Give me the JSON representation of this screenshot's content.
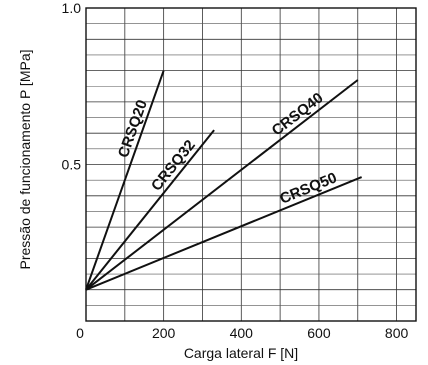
{
  "chart_data": {
    "type": "line",
    "xlabel": "Carga lateral  F [N]",
    "ylabel": "Pressão de funcionamento  P [MPa]",
    "xlim": [
      0,
      850
    ],
    "ylim": [
      0,
      1.0
    ],
    "x_ticks": [
      0,
      200,
      400,
      600,
      800
    ],
    "x_tick_labels": [
      "0",
      "200",
      "400",
      "600",
      "800"
    ],
    "y_ticks": [
      0.5,
      1.0
    ],
    "y_tick_labels": [
      "0.5",
      "1.0"
    ],
    "x_minor_step": 100,
    "y_minor_step": 0.1,
    "grid": true,
    "series": [
      {
        "name": "CRSQ20",
        "x": [
          0,
          200
        ],
        "y": [
          0.1,
          0.8
        ]
      },
      {
        "name": "CRSQ32",
        "x": [
          0,
          330
        ],
        "y": [
          0.1,
          0.61
        ]
      },
      {
        "name": "CRSQ40",
        "x": [
          0,
          700
        ],
        "y": [
          0.1,
          0.77
        ]
      },
      {
        "name": "CRSQ50",
        "x": [
          0,
          710
        ],
        "y": [
          0.1,
          0.46
        ]
      }
    ]
  }
}
